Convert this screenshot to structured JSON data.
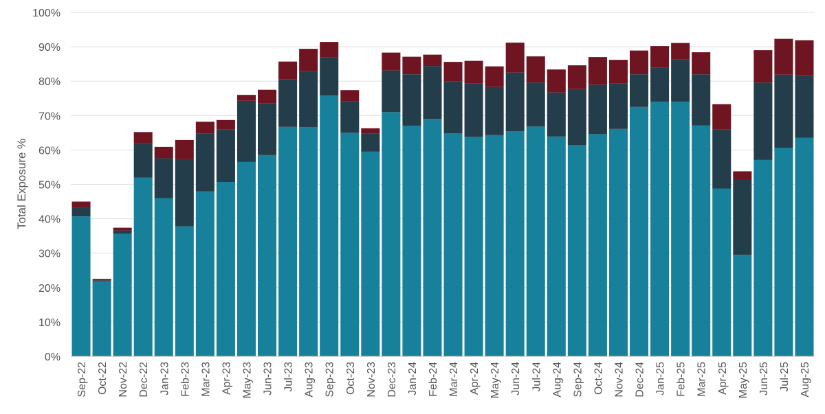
{
  "chart_data": {
    "type": "bar",
    "stacked": true,
    "title": "",
    "xlabel": "",
    "ylabel": "Total Exposure %",
    "ylim": [
      0,
      100
    ],
    "y_ticks": [
      "0%",
      "10%",
      "20%",
      "30%",
      "40%",
      "50%",
      "60%",
      "70%",
      "80%",
      "90%",
      "100%"
    ],
    "grid": "horizontal",
    "legend": "none",
    "categories": [
      "Sep-22",
      "Oct-22",
      "Nov-22",
      "Dec-22",
      "Jan-23",
      "Feb-23",
      "Mar-23",
      "Apr-23",
      "May-23",
      "Jun-23",
      "Jul-23",
      "Aug-23",
      "Sep-23",
      "Oct-23",
      "Nov-23",
      "Dec-23",
      "Jan-24",
      "Feb-24",
      "Mar-24",
      "Apr-24",
      "May-24",
      "Jun-24",
      "Jul-24",
      "Aug-24",
      "Sep-24",
      "Oct-24",
      "Nov-24",
      "Dec-24",
      "Jan-25",
      "Feb-25",
      "Mar-25",
      "Apr-25",
      "May-25",
      "Jun-25",
      "Jul-25",
      "Aug-25"
    ],
    "series": [
      {
        "color": "#17809b",
        "values": [
          40.7,
          21.8,
          35.6,
          52.0,
          46.0,
          37.8,
          48.0,
          50.7,
          56.5,
          58.5,
          66.7,
          66.6,
          75.8,
          65.0,
          59.5,
          71.0,
          67.0,
          69.0,
          64.8,
          63.8,
          64.3,
          65.4,
          66.8,
          63.9,
          61.4,
          64.6,
          66.1,
          72.5,
          74.0,
          74.0,
          67.1,
          48.8,
          29.5,
          57.1,
          60.6,
          63.5
        ]
      },
      {
        "color": "#243d4a",
        "values": [
          2.5,
          0.3,
          1.0,
          10.0,
          11.6,
          19.5,
          16.8,
          15.3,
          17.8,
          15.0,
          13.9,
          16.4,
          11.1,
          9.1,
          5.3,
          12.1,
          15.0,
          15.4,
          15.2,
          15.5,
          14.0,
          17.1,
          12.8,
          12.8,
          16.3,
          14.4,
          13.2,
          9.5,
          10.0,
          12.3,
          14.9,
          17.2,
          21.8,
          22.5,
          21.3,
          18.2
        ]
      },
      {
        "color": "#6e1521",
        "values": [
          1.8,
          0.4,
          0.8,
          3.2,
          3.3,
          5.6,
          3.4,
          2.7,
          1.7,
          4.0,
          5.1,
          6.4,
          4.5,
          3.3,
          1.5,
          5.2,
          5.1,
          3.3,
          5.6,
          6.6,
          6.0,
          8.7,
          7.6,
          6.7,
          6.9,
          8.0,
          6.9,
          6.9,
          6.2,
          4.8,
          6.4,
          7.3,
          2.5,
          9.4,
          10.4,
          10.2
        ]
      }
    ]
  }
}
